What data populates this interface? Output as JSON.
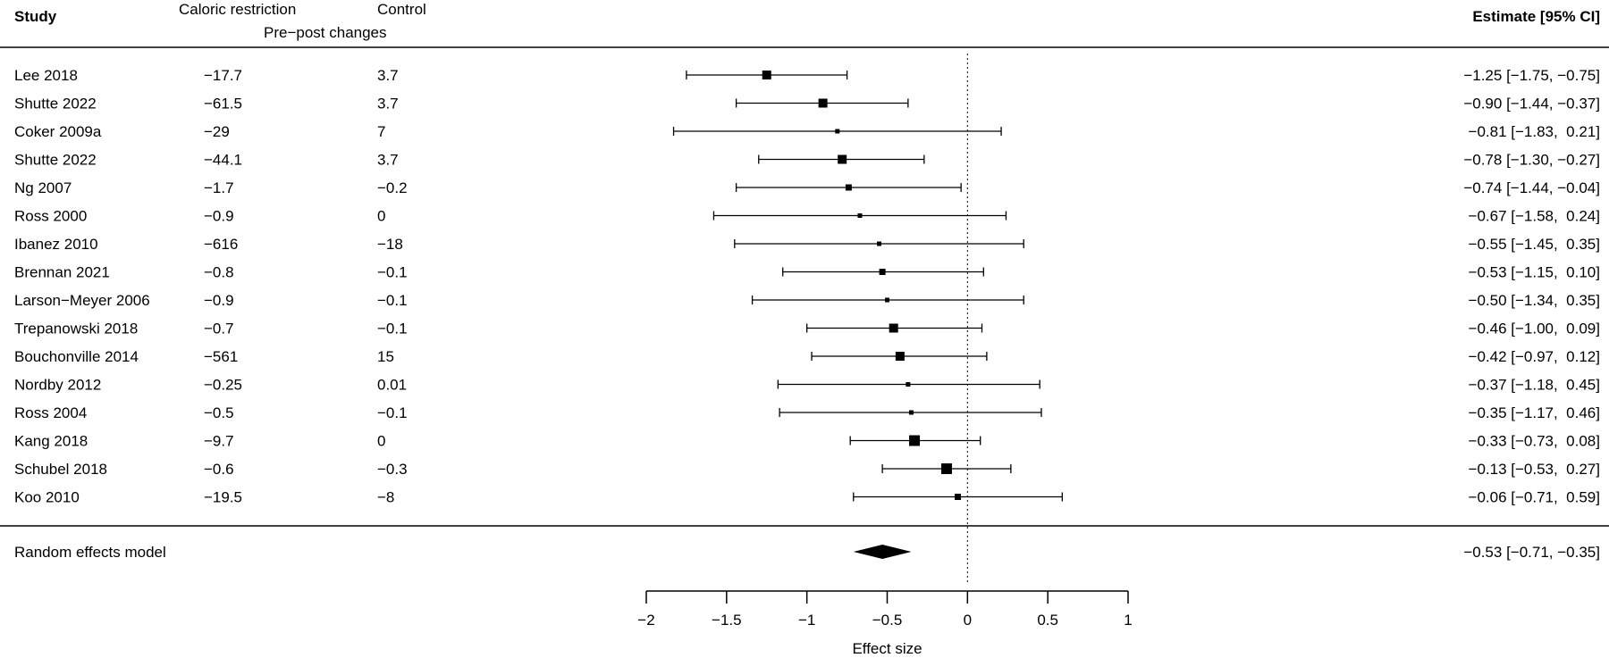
{
  "headers": {
    "study": "Study",
    "group1": "Caloric restriction",
    "group2": "Control",
    "subheader": "Pre−post changes",
    "estimate": "Estimate [95% CI]"
  },
  "chart_data": {
    "type": "forest",
    "xlabel": "Effect size",
    "xlim": [
      -2,
      1
    ],
    "xticks": [
      "−2",
      "−1.5",
      "−1",
      "−0.5",
      "0",
      "0.5",
      "1"
    ],
    "reference_line": 0,
    "studies": [
      {
        "name": "Lee 2018",
        "cr": "−17.7",
        "control": "3.7",
        "est": -1.25,
        "lo": -1.75,
        "hi": -0.75,
        "label": "−1.25 [−1.75, −0.75]",
        "weight": 3
      },
      {
        "name": "Shutte 2022",
        "cr": "−61.5",
        "control": "3.7",
        "est": -0.9,
        "lo": -1.44,
        "hi": -0.37,
        "label": "−0.90 [−1.44, −0.37]",
        "weight": 3
      },
      {
        "name": "Coker 2009a",
        "cr": "−29",
        "control": "7",
        "est": -0.81,
        "lo": -1.83,
        "hi": 0.21,
        "label": "−0.81 [−1.83,  0.21]",
        "weight": 1
      },
      {
        "name": "Shutte 2022",
        "cr": "−44.1",
        "control": "3.7",
        "est": -0.78,
        "lo": -1.3,
        "hi": -0.27,
        "label": "−0.78 [−1.30, −0.27]",
        "weight": 3
      },
      {
        "name": "Ng 2007",
        "cr": "−1.7",
        "control": "−0.2",
        "est": -0.74,
        "lo": -1.44,
        "hi": -0.04,
        "label": "−0.74 [−1.44, −0.04]",
        "weight": 2
      },
      {
        "name": "Ross 2000",
        "cr": "−0.9",
        "control": "0",
        "est": -0.67,
        "lo": -1.58,
        "hi": 0.24,
        "label": "−0.67 [−1.58,  0.24]",
        "weight": 1
      },
      {
        "name": "Ibanez 2010",
        "cr": "−616",
        "control": "−18",
        "est": -0.55,
        "lo": -1.45,
        "hi": 0.35,
        "label": "−0.55 [−1.45,  0.35]",
        "weight": 1
      },
      {
        "name": "Brennan 2021",
        "cr": "−0.8",
        "control": "−0.1",
        "est": -0.53,
        "lo": -1.15,
        "hi": 0.1,
        "label": "−0.53 [−1.15,  0.10]",
        "weight": 2
      },
      {
        "name": "Larson−Meyer 2006",
        "cr": "−0.9",
        "control": "−0.1",
        "est": -0.5,
        "lo": -1.34,
        "hi": 0.35,
        "label": "−0.50 [−1.34,  0.35]",
        "weight": 1
      },
      {
        "name": "Trepanowski 2018",
        "cr": "−0.7",
        "control": "−0.1",
        "est": -0.46,
        "lo": -1.0,
        "hi": 0.09,
        "label": "−0.46 [−1.00,  0.09]",
        "weight": 3
      },
      {
        "name": "Bouchonville 2014",
        "cr": "−561",
        "control": "15",
        "est": -0.42,
        "lo": -0.97,
        "hi": 0.12,
        "label": "−0.42 [−0.97,  0.12]",
        "weight": 3
      },
      {
        "name": "Nordby 2012",
        "cr": "−0.25",
        "control": "0.01",
        "est": -0.37,
        "lo": -1.18,
        "hi": 0.45,
        "label": "−0.37 [−1.18,  0.45]",
        "weight": 1
      },
      {
        "name": "Ross 2004",
        "cr": "−0.5",
        "control": "−0.1",
        "est": -0.35,
        "lo": -1.17,
        "hi": 0.46,
        "label": "−0.35 [−1.17,  0.46]",
        "weight": 1
      },
      {
        "name": "Kang 2018",
        "cr": "−9.7",
        "control": "0",
        "est": -0.33,
        "lo": -0.73,
        "hi": 0.08,
        "label": "−0.33 [−0.73,  0.08]",
        "weight": 4
      },
      {
        "name": "Schubel 2018",
        "cr": "−0.6",
        "control": "−0.3",
        "est": -0.13,
        "lo": -0.53,
        "hi": 0.27,
        "label": "−0.13 [−0.53,  0.27]",
        "weight": 4
      },
      {
        "name": "Koo 2010",
        "cr": "−19.5",
        "control": "−8",
        "est": -0.06,
        "lo": -0.71,
        "hi": 0.59,
        "label": "−0.06 [−0.71,  0.59]",
        "weight": 2
      }
    ],
    "pooled": {
      "name": "Random effects model",
      "est": -0.53,
      "lo": -0.71,
      "hi": -0.35,
      "label": "−0.53 [−0.71, −0.35]"
    }
  }
}
